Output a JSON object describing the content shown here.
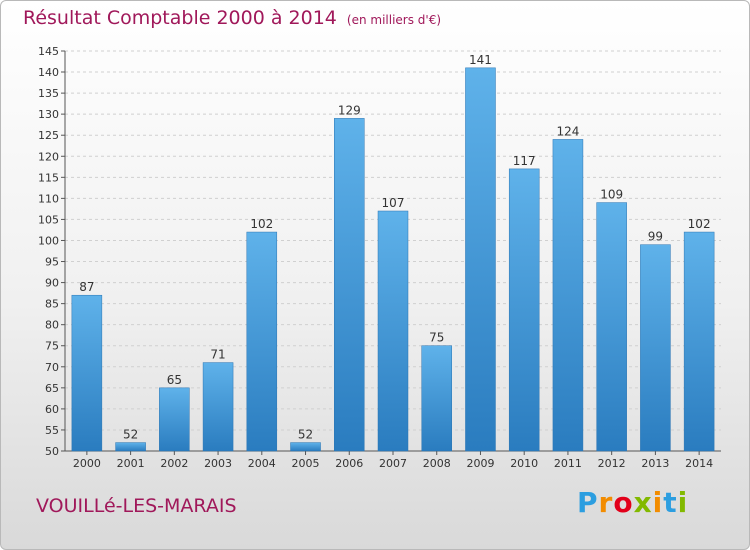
{
  "title": "Résultat Comptable 2000 à 2014",
  "subtitle": "(en milliers d'€)",
  "city": "VOUILLé-LES-MARAIS",
  "logo": {
    "letters": [
      "P",
      "r",
      "o",
      "x",
      "i",
      "t",
      "i"
    ],
    "colors": [
      "#2c9ee0",
      "#f28c00",
      "#e2001a",
      "#82b900",
      "#f28c00",
      "#2c9ee0",
      "#82b900"
    ]
  },
  "chart_data": {
    "type": "bar",
    "categories": [
      "2000",
      "2001",
      "2002",
      "2003",
      "2004",
      "2005",
      "2006",
      "2007",
      "2008",
      "2009",
      "2010",
      "2011",
      "2012",
      "2013",
      "2014"
    ],
    "values": [
      87,
      52,
      65,
      71,
      102,
      52,
      129,
      107,
      75,
      141,
      117,
      124,
      109,
      99,
      102
    ],
    "ylim": [
      50,
      145
    ],
    "yticks": [
      50,
      55,
      60,
      65,
      70,
      75,
      80,
      85,
      90,
      95,
      100,
      105,
      110,
      115,
      120,
      125,
      130,
      135,
      140,
      145
    ],
    "grid": true,
    "bar_color": "#4a9fd8"
  }
}
